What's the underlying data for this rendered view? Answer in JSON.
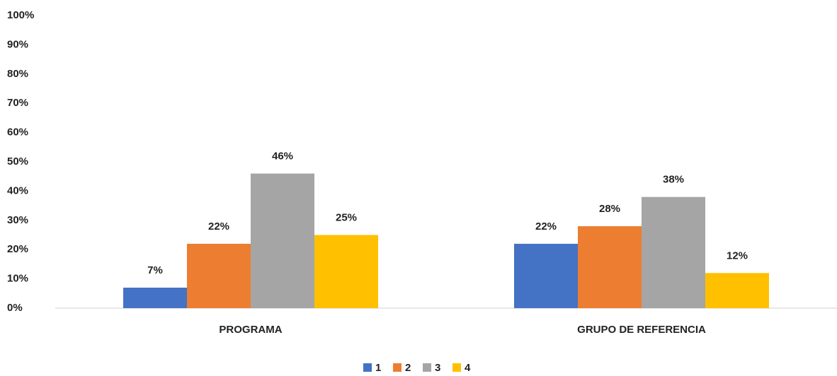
{
  "chart_data": {
    "type": "bar",
    "categories": [
      "PROGRAMA",
      "GRUPO DE REFERENCIA"
    ],
    "series": [
      {
        "name": "1",
        "color": "#4472c4",
        "values": [
          7,
          22
        ],
        "value_labels": [
          "7%",
          "22%"
        ]
      },
      {
        "name": "2",
        "color": "#ed7d31",
        "values": [
          22,
          28
        ],
        "value_labels": [
          "22%",
          "28%"
        ]
      },
      {
        "name": "3",
        "color": "#a5a5a5",
        "values": [
          46,
          38
        ],
        "value_labels": [
          "46%",
          "38%"
        ]
      },
      {
        "name": "4",
        "color": "#ffc000",
        "values": [
          25,
          12
        ],
        "value_labels": [
          "25%",
          "12%"
        ]
      }
    ],
    "ylim": [
      0,
      100
    ],
    "yticks": [
      {
        "value": 0,
        "label": "0%"
      },
      {
        "value": 10,
        "label": "10%"
      },
      {
        "value": 20,
        "label": "20%"
      },
      {
        "value": 30,
        "label": "30%"
      },
      {
        "value": 40,
        "label": "40%"
      },
      {
        "value": 50,
        "label": "50%"
      },
      {
        "value": 60,
        "label": "60%"
      },
      {
        "value": 70,
        "label": "70%"
      },
      {
        "value": 80,
        "label": "80%"
      },
      {
        "value": 90,
        "label": "90%"
      },
      {
        "value": 100,
        "label": "100%"
      }
    ],
    "grid": false,
    "legend": "bottom"
  }
}
